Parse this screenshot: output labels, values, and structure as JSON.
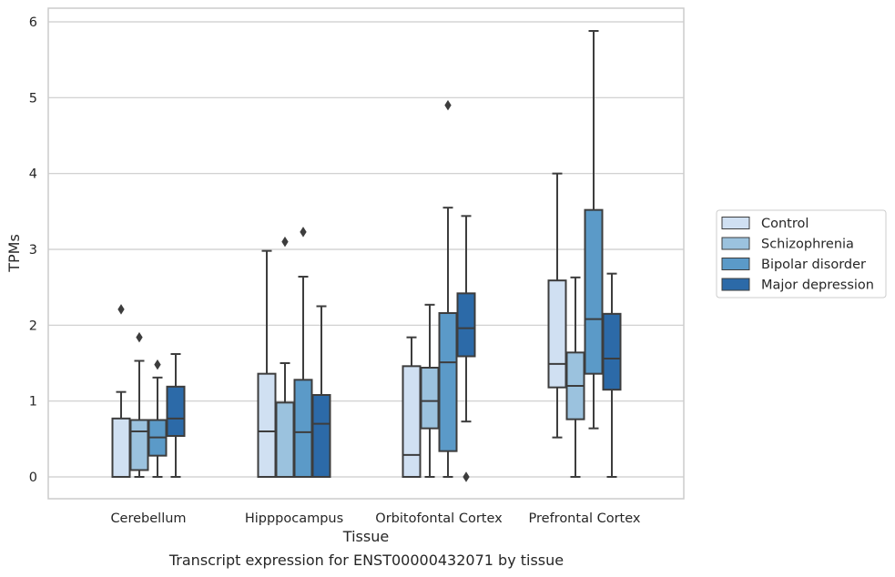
{
  "caption": "Transcript expression for ENST00000432071 by tissue",
  "chart_data": {
    "type": "box",
    "title": "",
    "xlabel": "Tissue",
    "ylabel": "TPMs",
    "categories": [
      "Cerebellum",
      "Hipppocampus",
      "Orbitofontal Cortex",
      "Prefrontal Cortex"
    ],
    "ylim": [
      -0.28,
      6.18
    ],
    "yticks": [
      0,
      1,
      2,
      3,
      4,
      5,
      6
    ],
    "grid": true,
    "legend_position": "right",
    "series": [
      {
        "name": "Control",
        "color": "#d0e0f2",
        "boxes": [
          {
            "whislo": 0.0,
            "q1": 0.0,
            "med": 0.0,
            "q3": 0.77,
            "whishi": 1.12,
            "fliers": [
              2.21
            ]
          },
          {
            "whislo": 0.0,
            "q1": 0.0,
            "med": 0.6,
            "q3": 1.36,
            "whishi": 2.98,
            "fliers": []
          },
          {
            "whislo": 0.0,
            "q1": 0.0,
            "med": 0.29,
            "q3": 1.46,
            "whishi": 1.84,
            "fliers": []
          },
          {
            "whislo": 0.52,
            "q1": 1.18,
            "med": 1.49,
            "q3": 2.59,
            "whishi": 4.0,
            "fliers": []
          }
        ]
      },
      {
        "name": "Schizophrenia",
        "color": "#9bc2de",
        "boxes": [
          {
            "whislo": 0.0,
            "q1": 0.09,
            "med": 0.6,
            "q3": 0.75,
            "whishi": 1.53,
            "fliers": [
              1.84
            ]
          },
          {
            "whislo": 0.0,
            "q1": 0.0,
            "med": 0.0,
            "q3": 0.98,
            "whishi": 1.5,
            "fliers": [
              3.1
            ]
          },
          {
            "whislo": 0.0,
            "q1": 0.64,
            "med": 1.0,
            "q3": 1.44,
            "whishi": 2.27,
            "fliers": []
          },
          {
            "whislo": 0.0,
            "q1": 0.76,
            "med": 1.2,
            "q3": 1.64,
            "whishi": 2.63,
            "fliers": []
          }
        ]
      },
      {
        "name": "Bipolar disorder",
        "color": "#5b9ac8",
        "boxes": [
          {
            "whislo": 0.0,
            "q1": 0.28,
            "med": 0.52,
            "q3": 0.75,
            "whishi": 1.31,
            "fliers": [
              1.48
            ]
          },
          {
            "whislo": 0.0,
            "q1": 0.0,
            "med": 0.59,
            "q3": 1.28,
            "whishi": 2.64,
            "fliers": [
              3.23
            ]
          },
          {
            "whislo": 0.0,
            "q1": 0.34,
            "med": 1.51,
            "q3": 2.16,
            "whishi": 3.55,
            "fliers": [
              4.9
            ]
          },
          {
            "whislo": 0.64,
            "q1": 1.36,
            "med": 2.08,
            "q3": 3.52,
            "whishi": 5.88,
            "fliers": []
          }
        ]
      },
      {
        "name": "Major depression",
        "color": "#2c6aa8",
        "boxes": [
          {
            "whislo": 0.0,
            "q1": 0.54,
            "med": 0.77,
            "q3": 1.19,
            "whishi": 1.62,
            "fliers": []
          },
          {
            "whislo": 0.0,
            "q1": 0.0,
            "med": 0.7,
            "q3": 1.08,
            "whishi": 2.25,
            "fliers": []
          },
          {
            "whislo": 0.73,
            "q1": 1.59,
            "med": 1.96,
            "q3": 2.42,
            "whishi": 3.44,
            "fliers": [
              0.0
            ]
          },
          {
            "whislo": 0.0,
            "q1": 1.15,
            "med": 1.56,
            "q3": 2.15,
            "whishi": 2.68,
            "fliers": []
          }
        ]
      }
    ]
  }
}
